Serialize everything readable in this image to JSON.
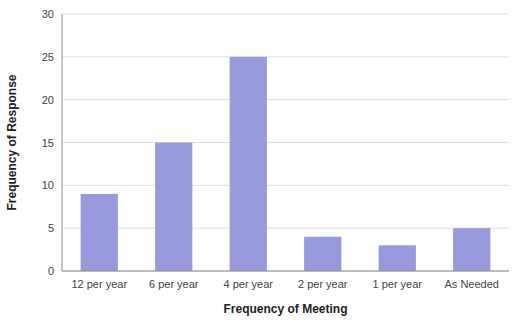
{
  "chart_data": {
    "type": "bar",
    "categories": [
      "12 per year",
      "6 per year",
      "4 per year",
      "2 per year",
      "1 per year",
      "As Needed"
    ],
    "values": [
      9,
      15,
      25,
      4,
      3,
      5
    ],
    "color": "#9999dd",
    "xlabel": "Frequency of Meeting",
    "ylabel": "Frequency of Response",
    "ylim": [
      0,
      30
    ],
    "yticks": [
      0,
      5,
      10,
      15,
      20,
      25,
      30
    ],
    "grid": true
  }
}
